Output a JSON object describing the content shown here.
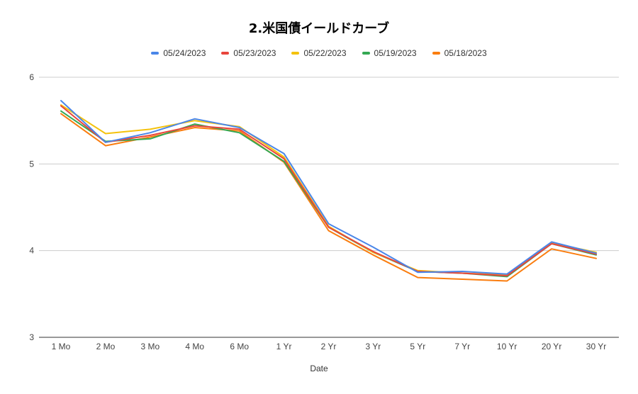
{
  "chart_data": {
    "type": "line",
    "title": "2.米国債イールドカーブ",
    "xlabel": "Date",
    "ylabel": "",
    "ylim": [
      3,
      6
    ],
    "yticks": [
      3,
      4,
      5,
      6
    ],
    "grid": true,
    "legend_position": "top",
    "categories": [
      "1 Mo",
      "2 Mo",
      "3 Mo",
      "4 Mo",
      "6 Mo",
      "1 Yr",
      "2 Yr",
      "3 Yr",
      "5 Yr",
      "7 Yr",
      "10 Yr",
      "20 Yr",
      "30 Yr"
    ],
    "series": [
      {
        "name": "05/24/2023",
        "color": "#4a86e8",
        "values": [
          5.73,
          5.25,
          5.36,
          5.52,
          5.42,
          5.12,
          4.31,
          4.04,
          3.75,
          3.76,
          3.73,
          4.1,
          3.97
        ]
      },
      {
        "name": "05/23/2023",
        "color": "#e8453c",
        "values": [
          5.67,
          5.25,
          5.33,
          5.44,
          5.4,
          5.06,
          4.27,
          3.99,
          3.76,
          3.74,
          3.71,
          4.08,
          3.96
        ]
      },
      {
        "name": "05/22/2023",
        "color": "#f4c20d",
        "values": [
          5.68,
          5.35,
          5.4,
          5.5,
          5.43,
          5.08,
          4.28,
          3.98,
          3.77,
          3.74,
          3.72,
          4.09,
          3.98
        ]
      },
      {
        "name": "05/19/2023",
        "color": "#34a853",
        "values": [
          5.61,
          5.26,
          5.29,
          5.46,
          5.36,
          5.03,
          4.27,
          3.98,
          3.76,
          3.74,
          3.7,
          4.08,
          3.95
        ]
      },
      {
        "name": "05/18/2023",
        "color": "#fa7d0f",
        "values": [
          5.58,
          5.21,
          5.31,
          5.42,
          5.38,
          5.02,
          4.23,
          3.95,
          3.69,
          3.67,
          3.65,
          4.02,
          3.91
        ]
      }
    ]
  }
}
